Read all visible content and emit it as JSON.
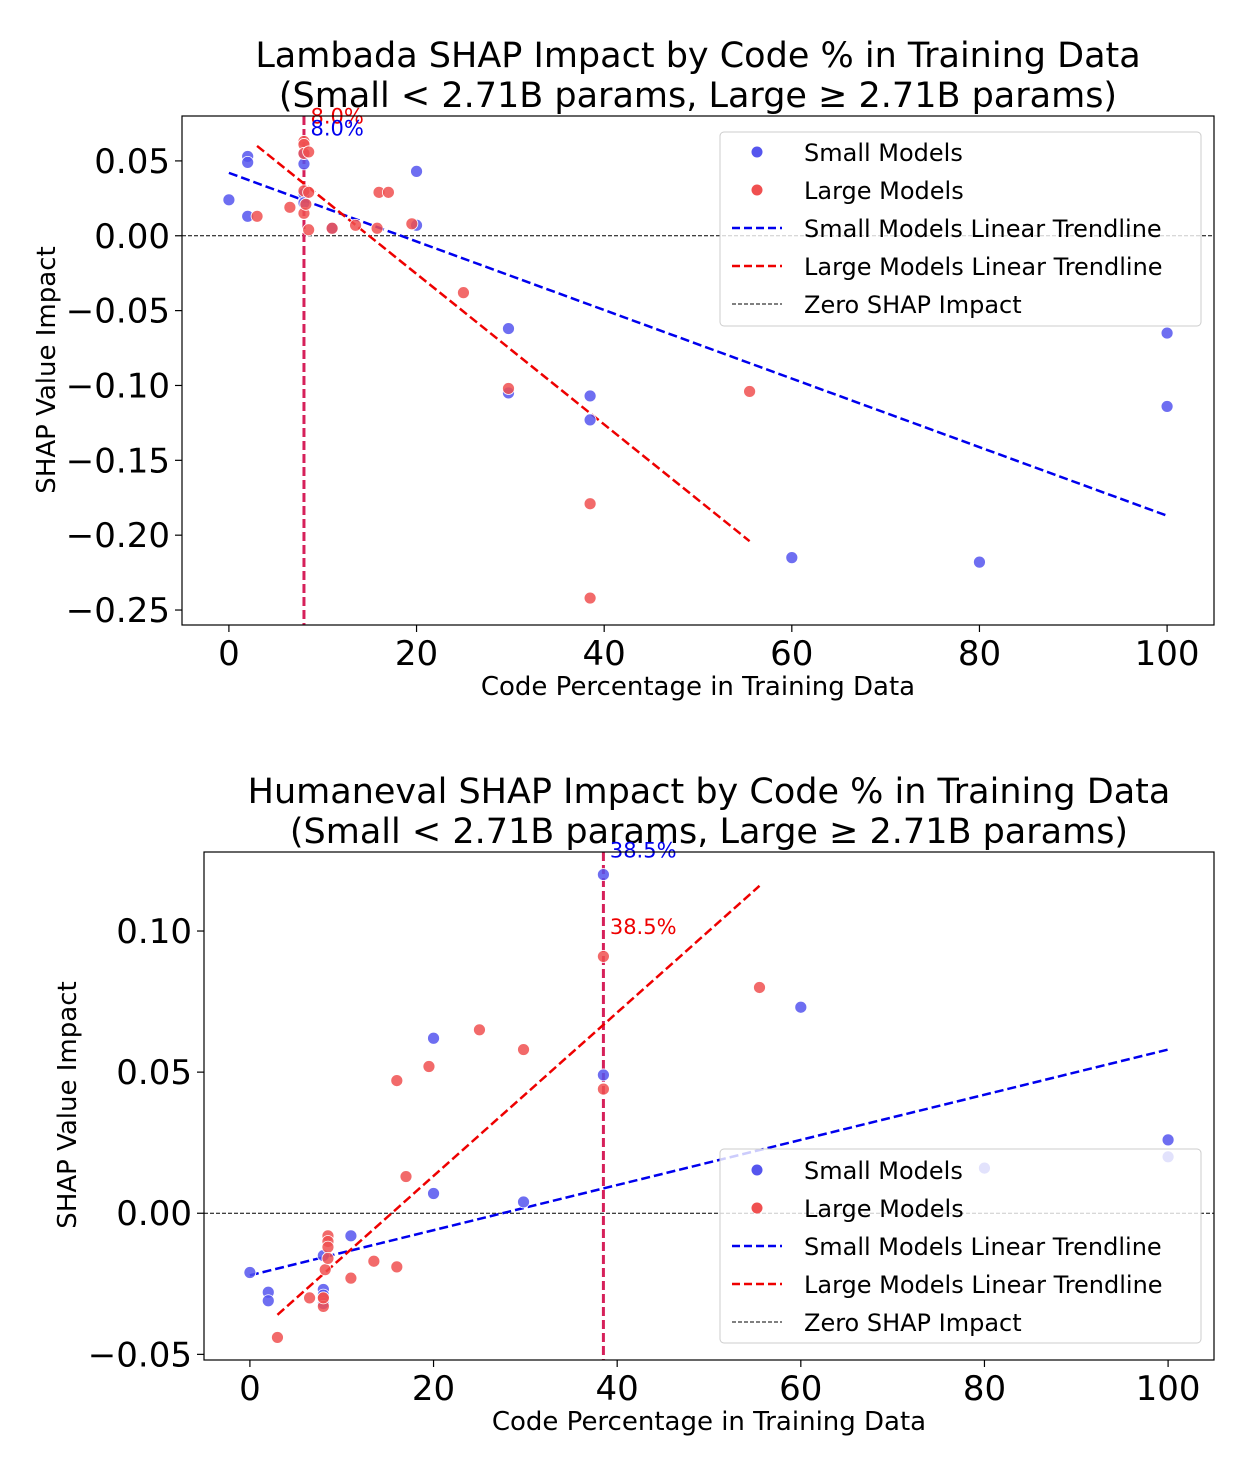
{
  "chart_data": [
    {
      "type": "scatter",
      "title_line1": "Lambada SHAP Impact by Code % in Training Data",
      "title_line2": "(Small < 2.71B params, Large ≥ 2.71B params)",
      "xlabel": "Code Percentage in Training Data",
      "ylabel": "SHAP Value Impact",
      "xlim": [
        -5,
        105
      ],
      "ylim": [
        -0.26,
        0.08
      ],
      "xticks": [
        {
          "value": 0,
          "label": "0"
        },
        {
          "value": 20,
          "label": "20"
        },
        {
          "value": 40,
          "label": "40"
        },
        {
          "value": 60,
          "label": "60"
        },
        {
          "value": 80,
          "label": "80"
        },
        {
          "value": 100,
          "label": "100"
        }
      ],
      "yticks": [
        {
          "value": 0.05,
          "label": "0.05"
        },
        {
          "value": 0.0,
          "label": "0.00"
        },
        {
          "value": -0.05,
          "label": "−0.05"
        },
        {
          "value": -0.1,
          "label": "−0.10"
        },
        {
          "value": -0.15,
          "label": "−0.15"
        },
        {
          "value": -0.2,
          "label": "−0.20"
        },
        {
          "value": -0.25,
          "label": "−0.25"
        }
      ],
      "series": [
        {
          "name": "Small Models",
          "color": "#5555ee",
          "points": [
            [
              0,
              0.024
            ],
            [
              2,
              0.053
            ],
            [
              2,
              0.049
            ],
            [
              2,
              0.013
            ],
            [
              8,
              0.048
            ],
            [
              8,
              0.055
            ],
            [
              8,
              0.028
            ],
            [
              8,
              0.022
            ],
            [
              11,
              0.005
            ],
            [
              20,
              0.043
            ],
            [
              20,
              0.007
            ],
            [
              29.8,
              -0.062
            ],
            [
              29.8,
              -0.105
            ],
            [
              38.5,
              -0.107
            ],
            [
              38.5,
              -0.123
            ],
            [
              60,
              -0.215
            ],
            [
              80,
              -0.218
            ],
            [
              100,
              -0.065
            ],
            [
              100,
              -0.114
            ]
          ]
        },
        {
          "name": "Large Models",
          "color": "#f05050",
          "points": [
            [
              3,
              0.013
            ],
            [
              6.5,
              0.019
            ],
            [
              8,
              0.063
            ],
            [
              8,
              0.061
            ],
            [
              8,
              0.055
            ],
            [
              8.5,
              0.056
            ],
            [
              8,
              0.03
            ],
            [
              8.5,
              0.029
            ],
            [
              8,
              0.015
            ],
            [
              8.5,
              0.004
            ],
            [
              8.2,
              0.021
            ],
            [
              11,
              0.005
            ],
            [
              13.5,
              0.007
            ],
            [
              15.8,
              0.005
            ],
            [
              16,
              0.029
            ],
            [
              17,
              0.029
            ],
            [
              19.5,
              0.008
            ],
            [
              25,
              -0.038
            ],
            [
              29.8,
              -0.102
            ],
            [
              38.5,
              -0.179
            ],
            [
              38.5,
              -0.242
            ],
            [
              55.5,
              -0.104
            ]
          ]
        }
      ],
      "trendlines": [
        {
          "name": "Small Models Linear Trendline",
          "color": "#0000ee",
          "x": [
            0,
            100
          ],
          "y": [
            0.042,
            -0.187
          ]
        },
        {
          "name": "Large Models Linear Trendline",
          "color": "#ee0000",
          "x": [
            3,
            55.5
          ],
          "y": [
            0.06,
            -0.204
          ]
        }
      ],
      "vline": {
        "x": 8.0,
        "color": "#d6205a"
      },
      "annotations": [
        {
          "text": "8.0%",
          "x": 8.7,
          "y": 0.075,
          "color": "#ee0000"
        },
        {
          "text": "8.0%",
          "x": 8.7,
          "y": 0.067,
          "color": "#0000ee"
        }
      ],
      "zero_line_label": "Zero SHAP Impact",
      "legend": [
        "Small Models",
        "Large Models",
        "Small Models Linear Trendline",
        "Large Models Linear Trendline",
        "Zero SHAP Impact"
      ],
      "legend_position": "top-right"
    },
    {
      "type": "scatter",
      "title_line1": "Humaneval SHAP Impact by Code % in Training Data",
      "title_line2": "(Small < 2.71B params, Large ≥ 2.71B params)",
      "xlabel": "Code Percentage in Training Data",
      "ylabel": "SHAP Value Impact",
      "xlim": [
        -5,
        105
      ],
      "ylim": [
        -0.052,
        0.128
      ],
      "xticks": [
        {
          "value": 0,
          "label": "0"
        },
        {
          "value": 20,
          "label": "20"
        },
        {
          "value": 40,
          "label": "40"
        },
        {
          "value": 60,
          "label": "60"
        },
        {
          "value": 80,
          "label": "80"
        },
        {
          "value": 100,
          "label": "100"
        }
      ],
      "yticks": [
        {
          "value": 0.1,
          "label": "0.10"
        },
        {
          "value": 0.05,
          "label": "0.05"
        },
        {
          "value": 0.0,
          "label": "0.00"
        },
        {
          "value": -0.05,
          "label": "−0.05"
        }
      ],
      "series": [
        {
          "name": "Small Models",
          "color": "#5555ee",
          "points": [
            [
              0,
              -0.021
            ],
            [
              2,
              -0.028
            ],
            [
              2,
              -0.031
            ],
            [
              8,
              -0.015
            ],
            [
              8,
              -0.027
            ],
            [
              8,
              -0.029
            ],
            [
              8,
              -0.032
            ],
            [
              11,
              -0.008
            ],
            [
              20,
              0.062
            ],
            [
              20,
              0.007
            ],
            [
              29.8,
              0.004
            ],
            [
              38.5,
              0.12
            ],
            [
              38.5,
              0.049
            ],
            [
              60,
              0.073
            ],
            [
              80,
              0.016
            ],
            [
              100,
              0.026
            ],
            [
              100,
              0.02
            ]
          ]
        },
        {
          "name": "Large Models",
          "color": "#f05050",
          "points": [
            [
              3,
              -0.044
            ],
            [
              6.5,
              -0.03
            ],
            [
              8,
              -0.03
            ],
            [
              8,
              -0.033
            ],
            [
              8,
              -0.03
            ],
            [
              8.2,
              -0.02
            ],
            [
              8.5,
              -0.008
            ],
            [
              8.5,
              -0.01
            ],
            [
              8.5,
              -0.012
            ],
            [
              8.5,
              -0.016
            ],
            [
              11,
              -0.023
            ],
            [
              13.5,
              -0.017
            ],
            [
              16,
              -0.019
            ],
            [
              16,
              0.047
            ],
            [
              17,
              0.013
            ],
            [
              19.5,
              0.052
            ],
            [
              25,
              0.065
            ],
            [
              29.8,
              0.058
            ],
            [
              38.5,
              0.091
            ],
            [
              38.5,
              0.044
            ],
            [
              55.5,
              0.08
            ]
          ]
        }
      ],
      "trendlines": [
        {
          "name": "Small Models Linear Trendline",
          "color": "#0000ee",
          "x": [
            0,
            100
          ],
          "y": [
            -0.022,
            0.058
          ]
        },
        {
          "name": "Large Models Linear Trendline",
          "color": "#ee0000",
          "x": [
            3,
            55.5
          ],
          "y": [
            -0.036,
            0.116
          ]
        }
      ],
      "vline": {
        "x": 38.5,
        "color": "#d6205a"
      },
      "annotations": [
        {
          "text": "38.5%",
          "x": 39.2,
          "y": 0.126,
          "color": "#0000ee"
        },
        {
          "text": "38.5%",
          "x": 39.2,
          "y": 0.099,
          "color": "#ee0000"
        }
      ],
      "zero_line_label": "Zero SHAP Impact",
      "legend": [
        "Small Models",
        "Large Models",
        "Small Models Linear Trendline",
        "Large Models Linear Trendline",
        "Zero SHAP Impact"
      ],
      "legend_position": "lower-right"
    }
  ]
}
